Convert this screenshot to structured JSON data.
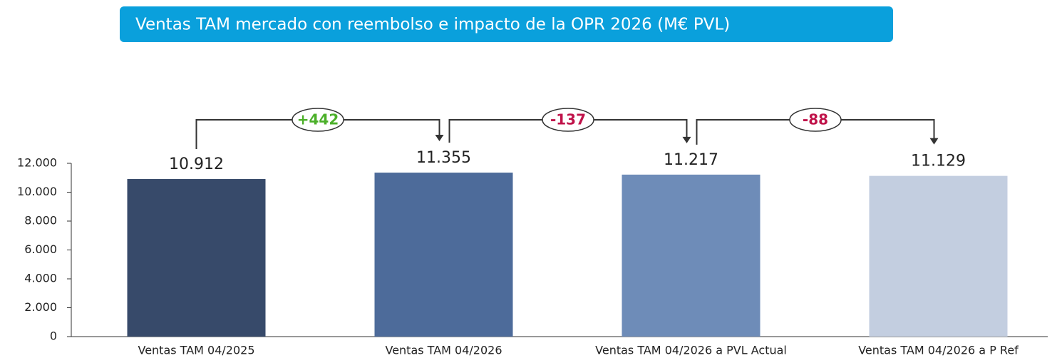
{
  "chart_data": {
    "type": "bar",
    "title": "Ventas TAM mercado con reembolso e impacto de la OPR 2026 (M€ PVL)",
    "categories": [
      "Ventas TAM 04/2025",
      "Ventas TAM 04/2026",
      "Ventas TAM 04/2026 a PVL Actual",
      "Ventas TAM 04/2026 a P Ref"
    ],
    "values": [
      10912,
      11355,
      11217,
      11129
    ],
    "value_labels": [
      "10.912",
      "11.355",
      "11.217",
      "11.129"
    ],
    "colors": [
      "#374a6a",
      "#4d6b9a",
      "#6e8cb8",
      "#c3cee0"
    ],
    "ylim": [
      0,
      12000
    ],
    "yticks": [
      0,
      {
        "value": 2000,
        "label": "2.000"
      },
      {
        "value": 4000,
        "label": "4.000"
      },
      {
        "value": 6000,
        "label": "6.000"
      },
      {
        "value": 8000,
        "label": "8.000"
      },
      {
        "value": 10000,
        "label": "10.000"
      },
      {
        "value": 12000,
        "label": "12.000"
      }
    ],
    "annotations": [
      {
        "label": "+442",
        "color": "#4cb02a"
      },
      {
        "label": "-137",
        "color": "#c0134a"
      },
      {
        "label": "-88",
        "color": "#c0134a"
      }
    ]
  }
}
